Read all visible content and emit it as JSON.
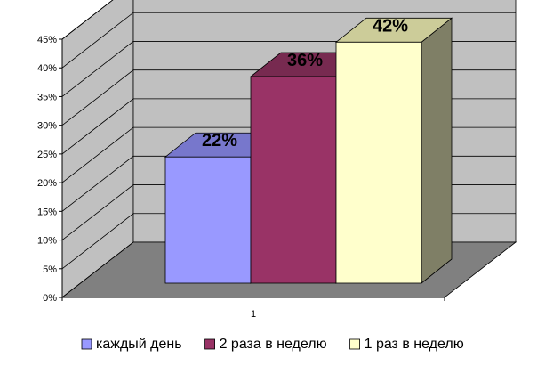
{
  "chart_data": {
    "type": "bar",
    "categories": [
      "1"
    ],
    "series": [
      {
        "name": "каждый день",
        "values": [
          22
        ],
        "label": "22%",
        "color": "#9999ff",
        "top_color": "#7777cc",
        "side_color": "#5c5c99"
      },
      {
        "name": "2 раза в неделю",
        "values": [
          36
        ],
        "label": "36%",
        "color": "#993366",
        "top_color": "#772a50",
        "side_color": "#5a1f3d"
      },
      {
        "name": "1 раз в неделю",
        "values": [
          42
        ],
        "label": "42%",
        "color": "#ffffcc",
        "top_color": "#cccc99",
        "side_color": "#7f7f66"
      }
    ],
    "ylim": [
      0,
      45
    ],
    "yticks": [
      "0%",
      "5%",
      "10%",
      "15%",
      "20%",
      "25%",
      "30%",
      "35%",
      "40%",
      "45%"
    ],
    "xlabel": "",
    "ylabel": "",
    "title": "",
    "grid": true,
    "legend_position": "bottom",
    "wall_color": "#c0c0c0",
    "floor_color": "#808080"
  }
}
